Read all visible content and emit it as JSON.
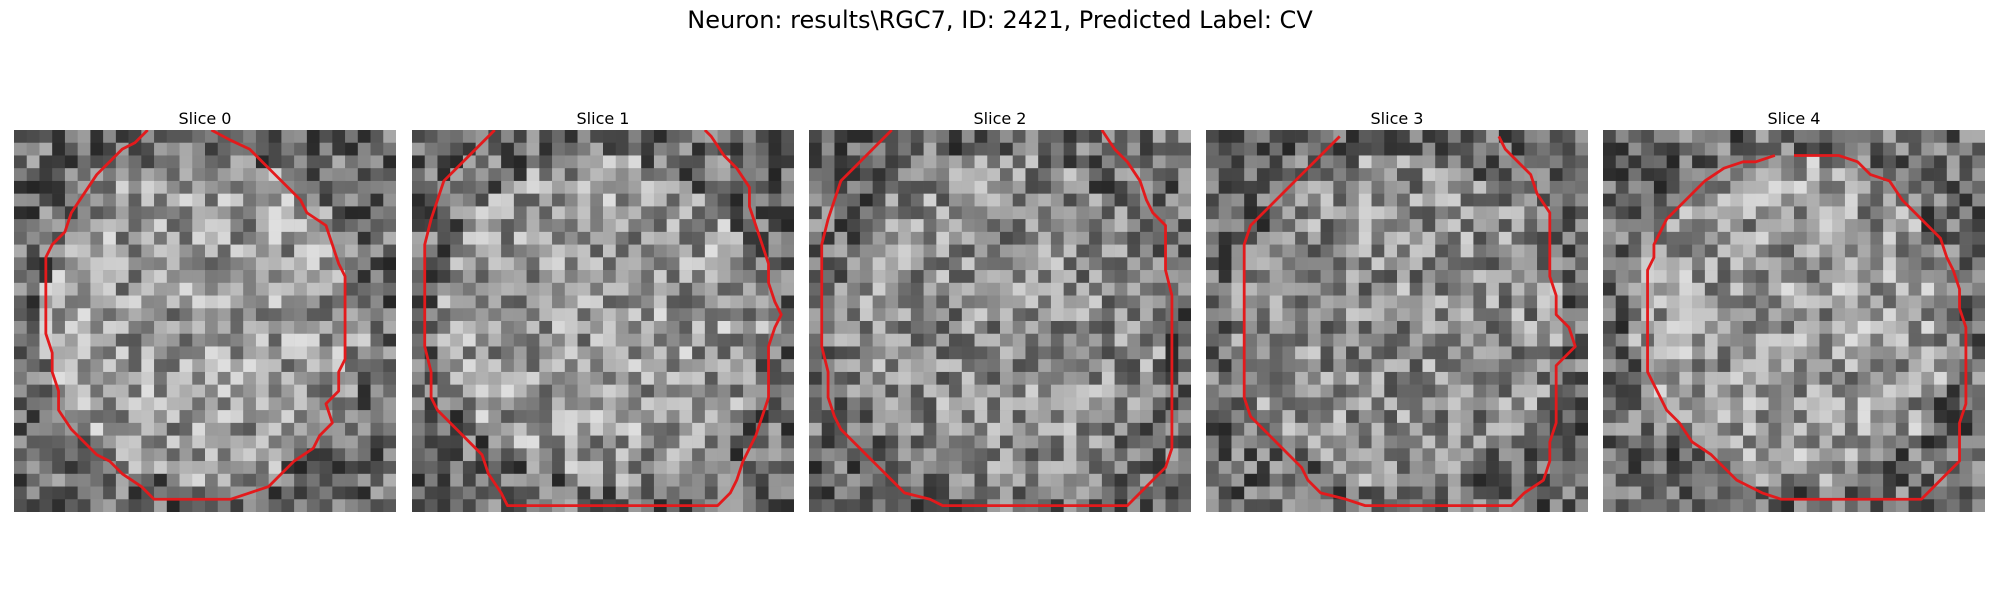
{
  "figure": {
    "title": "Neuron: results\\RGC7, ID: 2421, Predicted Label: CV"
  },
  "panels": [
    {
      "title": "Slice 0",
      "seed": 11,
      "bright_center": true
    },
    {
      "title": "Slice 1",
      "seed": 23,
      "bright_center": true
    },
    {
      "title": "Slice 2",
      "seed": 37,
      "bright_center": false
    },
    {
      "title": "Slice 3",
      "seed": 53,
      "bright_center": false
    },
    {
      "title": "Slice 4",
      "seed": 71,
      "bright_center": true
    }
  ],
  "colors": {
    "contour": "#e31a1c",
    "background": "#ffffff"
  },
  "grid_cells": 30
}
